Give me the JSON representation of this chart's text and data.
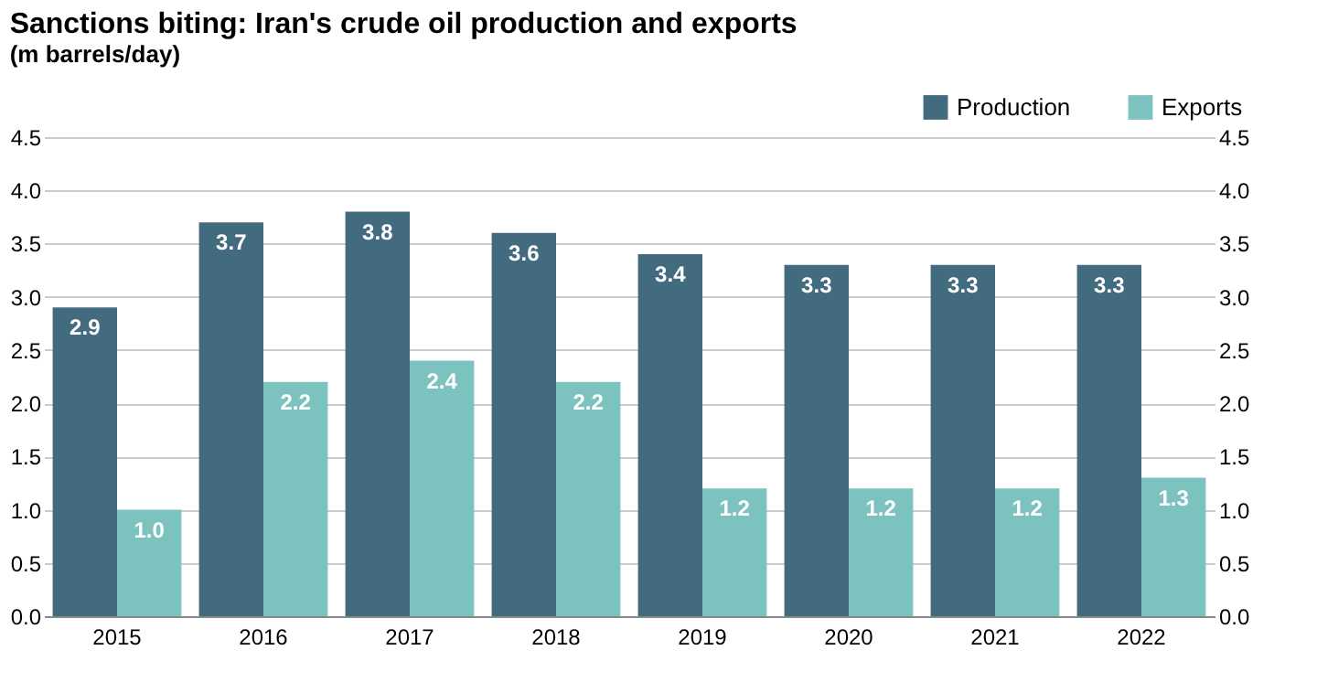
{
  "chart_data": {
    "type": "bar",
    "title": "Sanctions biting: Iran's crude oil production and exports",
    "subtitle": "(m barrels/day)",
    "categories": [
      "2015",
      "2016",
      "2017",
      "2018",
      "2019",
      "2020",
      "2021",
      "2022"
    ],
    "series": [
      {
        "name": "Production",
        "color": "#436b80",
        "values": [
          2.9,
          3.7,
          3.8,
          3.6,
          3.4,
          3.3,
          3.3,
          3.3
        ],
        "value_labels": [
          "2.9",
          "3.7",
          "3.8",
          "3.6",
          "3.4",
          "3.3",
          "3.3",
          "3.3"
        ]
      },
      {
        "name": "Exports",
        "color": "#7cc3bf",
        "values": [
          1.0,
          2.2,
          2.4,
          2.2,
          1.2,
          1.2,
          1.2,
          1.3
        ],
        "value_labels": [
          "1.0",
          "2.2",
          "2.4",
          "2.2",
          "1.2",
          "1.2",
          "1.2",
          "1.3"
        ]
      }
    ],
    "ylim": [
      0,
      4.5
    ],
    "yticks": [
      {
        "value": 0,
        "label": "0.0"
      },
      {
        "value": 0.5,
        "label": "0.5"
      },
      {
        "value": 1,
        "label": "1.0"
      },
      {
        "value": 1.5,
        "label": "1.5"
      },
      {
        "value": 2,
        "label": "2.0"
      },
      {
        "value": 2.5,
        "label": "2.5"
      },
      {
        "value": 3,
        "label": "3.0"
      },
      {
        "value": 3.5,
        "label": "3.5"
      },
      {
        "value": 4,
        "label": "4.0"
      },
      {
        "value": 4.5,
        "label": "4.5"
      }
    ],
    "y2lim": [
      0,
      4.5
    ],
    "y2ticks": [
      {
        "value": 0,
        "label": "0.0"
      },
      {
        "value": 0.5,
        "label": "0.5"
      },
      {
        "value": 1,
        "label": "1.0"
      },
      {
        "value": 1.5,
        "label": "1.5"
      },
      {
        "value": 2,
        "label": "2.0"
      },
      {
        "value": 2.5,
        "label": "2.5"
      },
      {
        "value": 3,
        "label": "3.0"
      },
      {
        "value": 3.5,
        "label": "3.5"
      },
      {
        "value": 4,
        "label": "4.0"
      },
      {
        "value": 4.5,
        "label": "4.5"
      }
    ],
    "grid": "y",
    "legend": "top right"
  }
}
